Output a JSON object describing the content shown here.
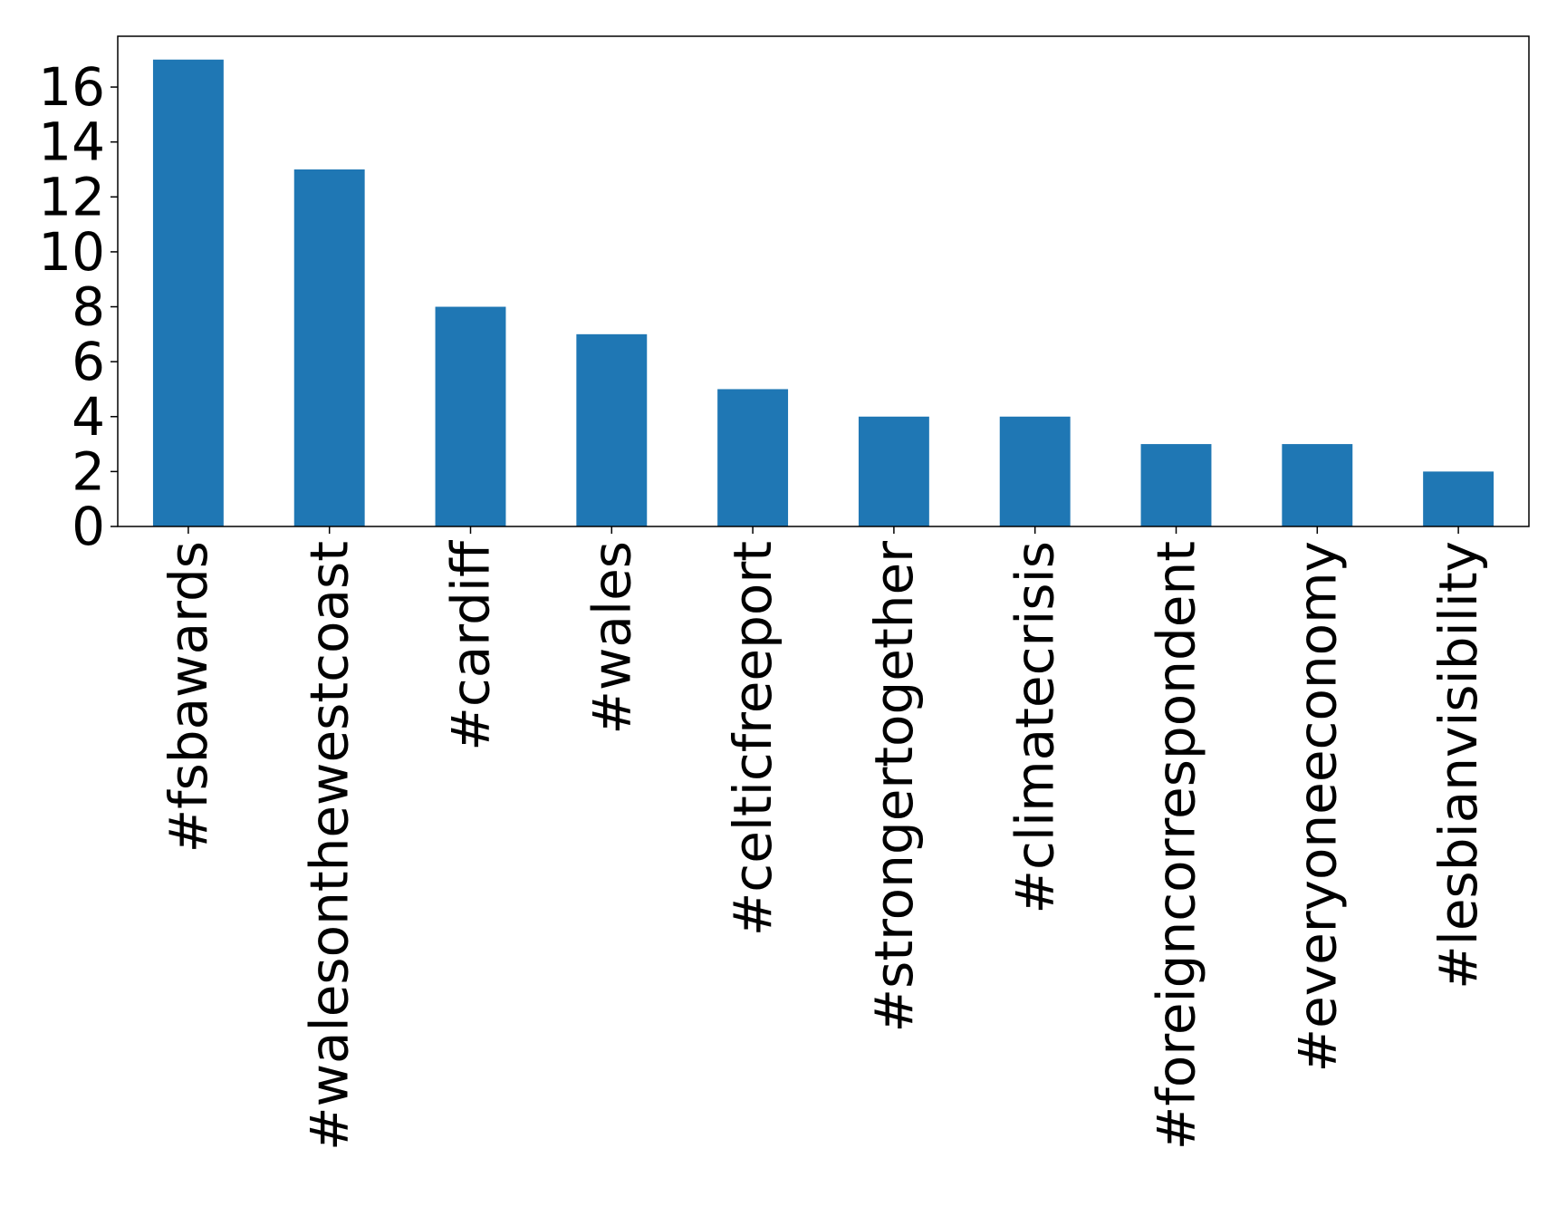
{
  "chart_data": {
    "type": "bar",
    "title": "",
    "xlabel": "",
    "ylabel": "",
    "categories": [
      "#fsbawards",
      "#walesonthewestcoast",
      "#cardiff",
      "#wales",
      "#celticfreeport",
      "#strongertogether",
      "#climatecrisis",
      "#foreigncorrespondent",
      "#everyoneeconomy",
      "#lesbianvisibility"
    ],
    "values": [
      17,
      13,
      8,
      7,
      5,
      4,
      4,
      3,
      3,
      2
    ],
    "ylim": [
      0,
      17.85
    ],
    "yticks": [
      0,
      2,
      4,
      6,
      8,
      10,
      12,
      14,
      16
    ],
    "grid": false,
    "legend": "none",
    "colors": {
      "bar": "#1f77b4",
      "axis": "#000000",
      "background": "#ffffff"
    }
  }
}
